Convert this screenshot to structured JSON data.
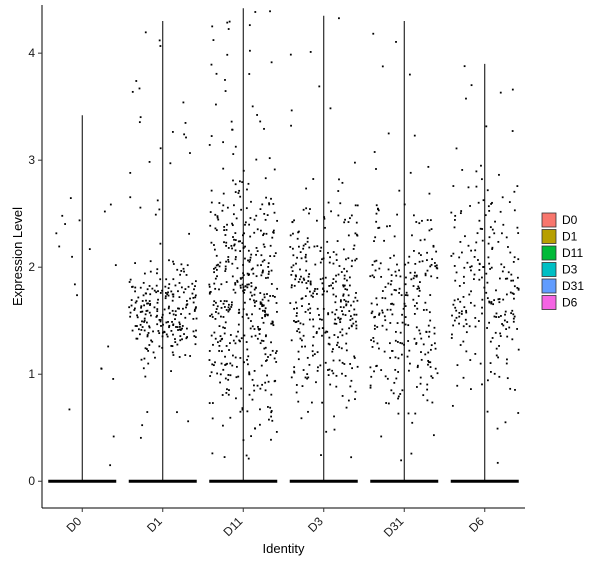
{
  "chart_data": {
    "type": "violin-jitter",
    "title": "",
    "xlabel": "Identity",
    "ylabel": "Expression Level",
    "ylim": [
      -0.25,
      4.45
    ],
    "yticks": [
      0,
      1,
      2,
      3,
      4
    ],
    "grid": false,
    "legend_position": "right",
    "categories": [
      "D0",
      "D1",
      "D11",
      "D3",
      "D31",
      "D6"
    ],
    "series": [
      {
        "name": "D0",
        "color": "#F8766D",
        "max": 3.42,
        "points_nonzero": 20,
        "center": 1.6,
        "spread": 1.5
      },
      {
        "name": "D1",
        "color": "#B79F00",
        "max": 4.3,
        "points_nonzero": 260,
        "center": 1.6,
        "spread": 0.45
      },
      {
        "name": "D11",
        "color": "#00BA38",
        "max": 4.42,
        "points_nonzero": 460,
        "center": 1.7,
        "spread": 1.1
      },
      {
        "name": "D3",
        "color": "#00BFC4",
        "max": 4.35,
        "points_nonzero": 330,
        "center": 1.7,
        "spread": 0.9
      },
      {
        "name": "D31",
        "color": "#619CFF",
        "max": 4.3,
        "points_nonzero": 260,
        "center": 1.6,
        "spread": 0.95
      },
      {
        "name": "D6",
        "color": "#F564E3",
        "max": 3.9,
        "points_nonzero": 230,
        "center": 1.8,
        "spread": 0.95
      }
    ]
  }
}
